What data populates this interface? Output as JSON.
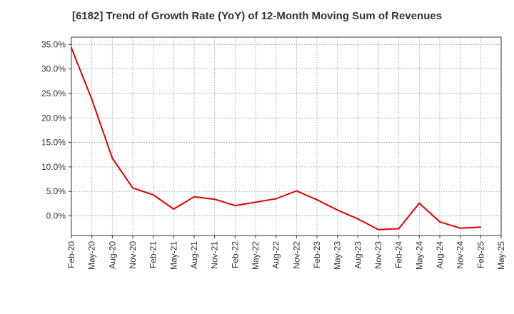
{
  "chart_data": {
    "type": "line",
    "title": "[6182]  Trend of Growth Rate (YoY) of 12-Month Moving Sum of Revenues",
    "xlabel": "",
    "ylabel": "",
    "x": [
      "Feb-20",
      "May-20",
      "Aug-20",
      "Nov-20",
      "Feb-21",
      "May-21",
      "Aug-21",
      "Nov-21",
      "Feb-22",
      "May-22",
      "Aug-22",
      "Nov-22",
      "Feb-23",
      "May-23",
      "Aug-23",
      "Nov-23",
      "Feb-24",
      "May-24",
      "Aug-24",
      "Nov-24",
      "Feb-25"
    ],
    "x_ticks": [
      "Feb-20",
      "May-20",
      "Aug-20",
      "Nov-20",
      "Feb-21",
      "May-21",
      "Aug-21",
      "Nov-21",
      "Feb-22",
      "May-22",
      "Aug-22",
      "Nov-22",
      "Feb-23",
      "May-23",
      "Aug-23",
      "Nov-23",
      "Feb-24",
      "May-24",
      "Aug-24",
      "Nov-24",
      "Feb-25",
      "May-25"
    ],
    "y_ticks": [
      "35.0%",
      "30.0%",
      "25.0%",
      "20.0%",
      "15.0%",
      "10.0%",
      "5.0%",
      "0.0%"
    ],
    "y_tick_values": [
      35,
      30,
      25,
      20,
      15,
      10,
      5,
      0
    ],
    "ylim": [
      -4,
      36.5
    ],
    "series": [
      {
        "color": "#dd0000",
        "values": [
          34.3,
          23.8,
          11.8,
          5.7,
          4.3,
          1.4,
          3.9,
          3.4,
          2.1,
          2.8,
          3.5,
          5.1,
          3.3,
          1.2,
          -0.6,
          -2.8,
          -2.6,
          2.6,
          -1.2,
          -2.5,
          -2.3
        ]
      }
    ],
    "grid": true,
    "legend": "none"
  }
}
